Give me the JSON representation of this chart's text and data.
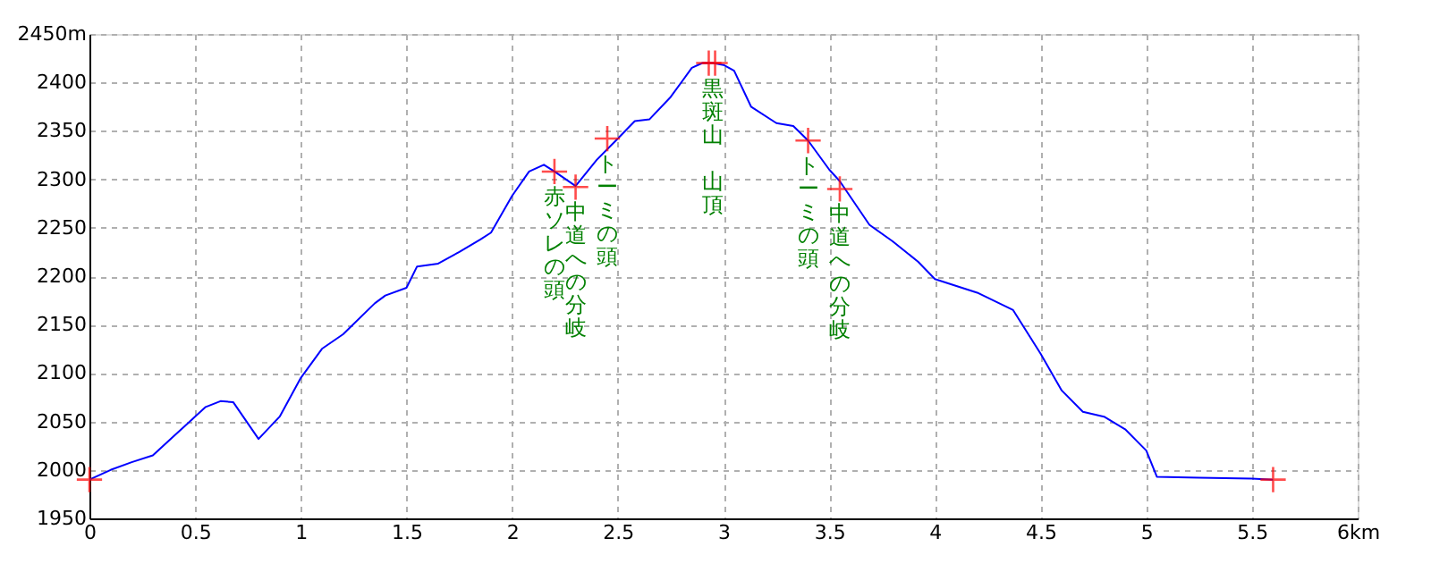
{
  "chart_data": {
    "type": "line",
    "xlim": [
      0,
      6
    ],
    "ylim": [
      1950,
      2450
    ],
    "xticks": [
      0,
      0.5,
      1,
      1.5,
      2,
      2.5,
      3,
      3.5,
      4,
      4.5,
      5,
      5.5,
      {
        "value": 6,
        "label": "6km"
      }
    ],
    "yticks": [
      1950,
      2000,
      2050,
      2100,
      2150,
      2200,
      2250,
      2300,
      2350,
      2400,
      {
        "value": 2450,
        "label": "2450m"
      }
    ],
    "grid": true,
    "series": [
      {
        "color": "#0000ff",
        "marker": "none",
        "line_style": "solid",
        "x": [
          0,
          0.1,
          0.2,
          0.3,
          0.4,
          0.45,
          0.55,
          0.62,
          0.68,
          0.8,
          0.9,
          1.0,
          1.1,
          1.2,
          1.35,
          1.4,
          1.5,
          1.55,
          1.65,
          1.75,
          1.85,
          1.9,
          2.0,
          2.08,
          2.15,
          2.2,
          2.3,
          2.4,
          2.5,
          2.58,
          2.65,
          2.75,
          2.85,
          2.9,
          2.95,
          3.0,
          3.05,
          3.13,
          3.25,
          3.33,
          3.4,
          3.5,
          3.55,
          3.69,
          3.8,
          3.92,
          4.0,
          4.2,
          4.37,
          4.5,
          4.6,
          4.7,
          4.8,
          4.9,
          5.0,
          5.05,
          5.25,
          5.5,
          5.6
        ],
        "values": [
          1990,
          2000,
          2008,
          2015,
          2035,
          2045,
          2065,
          2071,
          2070,
          2032,
          2055,
          2095,
          2125,
          2140,
          2172,
          2180,
          2188,
          2210,
          2213,
          2225,
          2238,
          2245,
          2283,
          2308,
          2315,
          2308,
          2293,
          2320,
          2342,
          2360,
          2362,
          2385,
          2415,
          2420,
          2420,
          2418,
          2412,
          2375,
          2358,
          2355,
          2340,
          2310,
          2298,
          2253,
          2236,
          2215,
          2197,
          2183,
          2165,
          2120,
          2082,
          2060,
          2055,
          2042,
          2020,
          1993,
          1992,
          1991,
          1990
        ]
      },
      {
        "type": "scatter",
        "color": "#ff0000",
        "marker": "cross",
        "x": [
          0,
          2.2,
          2.3,
          2.45,
          2.93,
          2.96,
          3.4,
          3.55,
          5.6
        ],
        "values": [
          1990,
          2308,
          2292,
          2342,
          2420,
          2420,
          2340,
          2290,
          1990
        ]
      }
    ],
    "annotations": [
      {
        "text": "赤ソレの頭",
        "x": 2.2,
        "y": 2308
      },
      {
        "text": "中道への分岐",
        "x": 2.3,
        "y": 2292
      },
      {
        "text": "トーミの頭",
        "x": 2.45,
        "y": 2342
      },
      {
        "text": "黒斑山",
        "x": 2.95,
        "y": 2420
      },
      "山頂",
      {
        "text": "トーミの頭",
        "x": 3.4,
        "y": 2340
      },
      {
        "text": "中道への分岐",
        "x": 3.55,
        "y": 2290
      }
    ]
  }
}
